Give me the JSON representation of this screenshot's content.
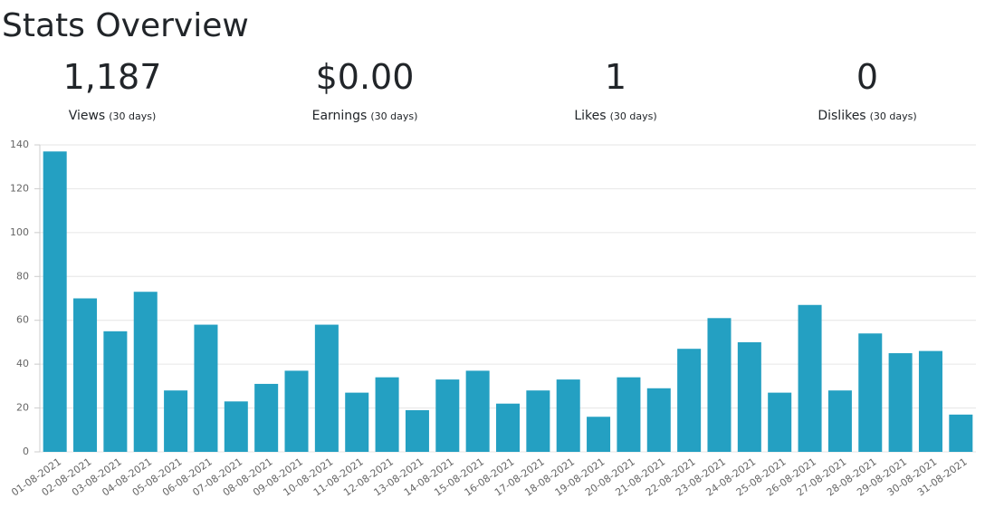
{
  "header": {
    "title": "Stats Overview"
  },
  "stats": [
    {
      "value": "1,187",
      "label": "Views",
      "period": "(30 days)"
    },
    {
      "value": "$0.00",
      "label": "Earnings",
      "period": "(30 days)"
    },
    {
      "value": "1",
      "label": "Likes",
      "period": "(30 days)"
    },
    {
      "value": "0",
      "label": "Dislikes",
      "period": "(30 days)"
    }
  ],
  "chart_data": {
    "type": "bar",
    "color": "#24a0c2",
    "grid": true,
    "categories": [
      "01-08-2021",
      "02-08-2021",
      "03-08-2021",
      "04-08-2021",
      "05-08-2021",
      "06-08-2021",
      "07-08-2021",
      "08-08-2021",
      "09-08-2021",
      "10-08-2021",
      "11-08-2021",
      "12-08-2021",
      "13-08-2021",
      "14-08-2021",
      "15-08-2021",
      "16-08-2021",
      "17-08-2021",
      "18-08-2021",
      "19-08-2021",
      "20-08-2021",
      "21-08-2021",
      "22-08-2021",
      "23-08-2021",
      "24-08-2021",
      "25-08-2021",
      "26-08-2021",
      "27-08-2021",
      "28-08-2021",
      "29-08-2021",
      "30-08-2021",
      "31-08-2021"
    ],
    "values": [
      137,
      70,
      55,
      73,
      28,
      58,
      23,
      31,
      37,
      58,
      27,
      34,
      19,
      33,
      37,
      22,
      28,
      33,
      16,
      34,
      29,
      47,
      61,
      50,
      27,
      67,
      28,
      54,
      45,
      46,
      17
    ],
    "ylim": [
      0,
      140
    ],
    "yticks": [
      0,
      20,
      40,
      60,
      80,
      100,
      120,
      140
    ]
  }
}
